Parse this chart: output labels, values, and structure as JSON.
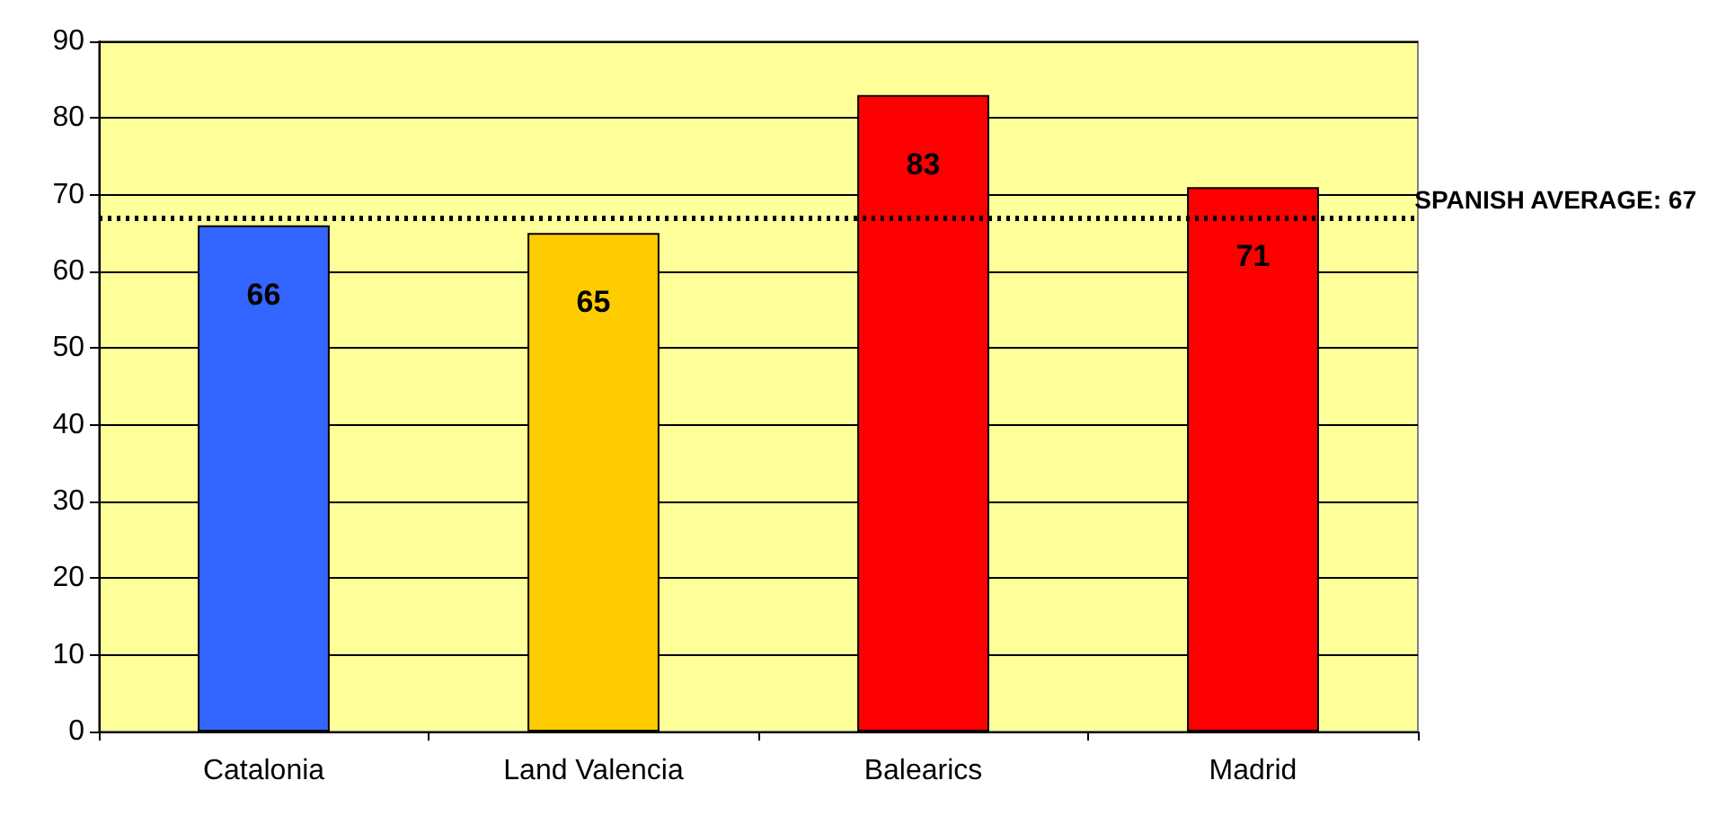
{
  "chart_data": {
    "type": "bar",
    "categories": [
      "Catalonia",
      "Land Valencia",
      "Balearics",
      "Madrid"
    ],
    "values": [
      66,
      65,
      83,
      71
    ],
    "colors": [
      "#3366ff",
      "#ffcc00",
      "#ff0000",
      "#ff0000"
    ],
    "ylim": [
      0,
      90
    ],
    "yticks": [
      0,
      10,
      20,
      30,
      40,
      50,
      60,
      70,
      80,
      90
    ],
    "grid": "y",
    "data_labels": true,
    "ref_lines": [
      {
        "axis": "y",
        "value": 67,
        "label": "SPANISH AVERAGE: 67",
        "color": "#000000",
        "line_style": "dotted"
      }
    ]
  }
}
